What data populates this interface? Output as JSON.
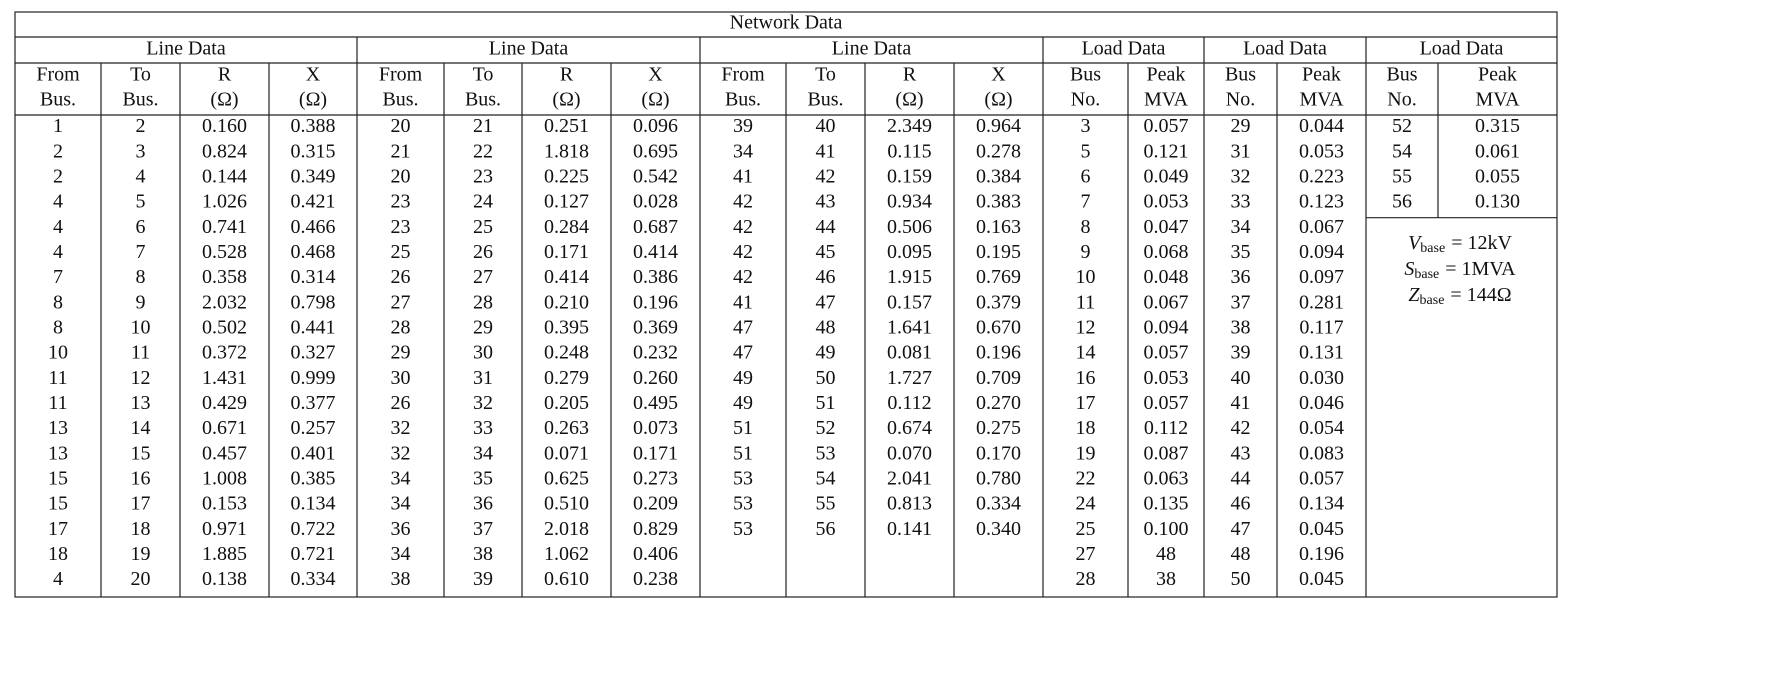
{
  "title": "Network Data",
  "groups": [
    {
      "title": "Line Data",
      "headers": [
        [
          "From",
          "Bus."
        ],
        [
          "To",
          "Bus."
        ],
        [
          "R",
          "(Ω)"
        ],
        [
          "X",
          "(Ω)"
        ]
      ],
      "rows": [
        [
          "1",
          "2",
          "0.160",
          "0.388"
        ],
        [
          "2",
          "3",
          "0.824",
          "0.315"
        ],
        [
          "2",
          "4",
          "0.144",
          "0.349"
        ],
        [
          "4",
          "5",
          "1.026",
          "0.421"
        ],
        [
          "4",
          "6",
          "0.741",
          "0.466"
        ],
        [
          "4",
          "7",
          "0.528",
          "0.468"
        ],
        [
          "7",
          "8",
          "0.358",
          "0.314"
        ],
        [
          "8",
          "9",
          "2.032",
          "0.798"
        ],
        [
          "8",
          "10",
          "0.502",
          "0.441"
        ],
        [
          "10",
          "11",
          "0.372",
          "0.327"
        ],
        [
          "11",
          "12",
          "1.431",
          "0.999"
        ],
        [
          "11",
          "13",
          "0.429",
          "0.377"
        ],
        [
          "13",
          "14",
          "0.671",
          "0.257"
        ],
        [
          "13",
          "15",
          "0.457",
          "0.401"
        ],
        [
          "15",
          "16",
          "1.008",
          "0.385"
        ],
        [
          "15",
          "17",
          "0.153",
          "0.134"
        ],
        [
          "17",
          "18",
          "0.971",
          "0.722"
        ],
        [
          "18",
          "19",
          "1.885",
          "0.721"
        ],
        [
          "4",
          "20",
          "0.138",
          "0.334"
        ]
      ]
    },
    {
      "title": "Line Data",
      "headers": [
        [
          "From",
          "Bus."
        ],
        [
          "To",
          "Bus."
        ],
        [
          "R",
          "(Ω)"
        ],
        [
          "X",
          "(Ω)"
        ]
      ],
      "rows": [
        [
          "20",
          "21",
          "0.251",
          "0.096"
        ],
        [
          "21",
          "22",
          "1.818",
          "0.695"
        ],
        [
          "20",
          "23",
          "0.225",
          "0.542"
        ],
        [
          "23",
          "24",
          "0.127",
          "0.028"
        ],
        [
          "23",
          "25",
          "0.284",
          "0.687"
        ],
        [
          "25",
          "26",
          "0.171",
          "0.414"
        ],
        [
          "26",
          "27",
          "0.414",
          "0.386"
        ],
        [
          "27",
          "28",
          "0.210",
          "0.196"
        ],
        [
          "28",
          "29",
          "0.395",
          "0.369"
        ],
        [
          "29",
          "30",
          "0.248",
          "0.232"
        ],
        [
          "30",
          "31",
          "0.279",
          "0.260"
        ],
        [
          "26",
          "32",
          "0.205",
          "0.495"
        ],
        [
          "32",
          "33",
          "0.263",
          "0.073"
        ],
        [
          "32",
          "34",
          "0.071",
          "0.171"
        ],
        [
          "34",
          "35",
          "0.625",
          "0.273"
        ],
        [
          "34",
          "36",
          "0.510",
          "0.209"
        ],
        [
          "36",
          "37",
          "2.018",
          "0.829"
        ],
        [
          "34",
          "38",
          "1.062",
          "0.406"
        ],
        [
          "38",
          "39",
          "0.610",
          "0.238"
        ]
      ]
    },
    {
      "title": "Line Data",
      "headers": [
        [
          "From",
          "Bus."
        ],
        [
          "To",
          "Bus."
        ],
        [
          "R",
          "(Ω)"
        ],
        [
          "X",
          "(Ω)"
        ]
      ],
      "rows": [
        [
          "39",
          "40",
          "2.349",
          "0.964"
        ],
        [
          "34",
          "41",
          "0.115",
          "0.278"
        ],
        [
          "41",
          "42",
          "0.159",
          "0.384"
        ],
        [
          "42",
          "43",
          "0.934",
          "0.383"
        ],
        [
          "42",
          "44",
          "0.506",
          "0.163"
        ],
        [
          "42",
          "45",
          "0.095",
          "0.195"
        ],
        [
          "42",
          "46",
          "1.915",
          "0.769"
        ],
        [
          "41",
          "47",
          "0.157",
          "0.379"
        ],
        [
          "47",
          "48",
          "1.641",
          "0.670"
        ],
        [
          "47",
          "49",
          "0.081",
          "0.196"
        ],
        [
          "49",
          "50",
          "1.727",
          "0.709"
        ],
        [
          "49",
          "51",
          "0.112",
          "0.270"
        ],
        [
          "51",
          "52",
          "0.674",
          "0.275"
        ],
        [
          "51",
          "53",
          "0.070",
          "0.170"
        ],
        [
          "53",
          "54",
          "2.041",
          "0.780"
        ],
        [
          "53",
          "55",
          "0.813",
          "0.334"
        ],
        [
          "53",
          "56",
          "0.141",
          "0.340"
        ]
      ]
    },
    {
      "title": "Load Data",
      "headers": [
        [
          "Bus",
          "No."
        ],
        [
          "Peak",
          "MVA"
        ]
      ],
      "rows": [
        [
          "3",
          "0.057"
        ],
        [
          "5",
          "0.121"
        ],
        [
          "6",
          "0.049"
        ],
        [
          "7",
          "0.053"
        ],
        [
          "8",
          "0.047"
        ],
        [
          "9",
          "0.068"
        ],
        [
          "10",
          "0.048"
        ],
        [
          "11",
          "0.067"
        ],
        [
          "12",
          "0.094"
        ],
        [
          "14",
          "0.057"
        ],
        [
          "16",
          "0.053"
        ],
        [
          "17",
          "0.057"
        ],
        [
          "18",
          "0.112"
        ],
        [
          "19",
          "0.087"
        ],
        [
          "22",
          "0.063"
        ],
        [
          "24",
          "0.135"
        ],
        [
          "25",
          "0.100"
        ],
        [
          "27",
          "48"
        ],
        [
          "28",
          "38"
        ]
      ]
    },
    {
      "title": "Load Data",
      "headers": [
        [
          "Bus",
          "No."
        ],
        [
          "Peak",
          "MVA"
        ]
      ],
      "rows": [
        [
          "29",
          "0.044"
        ],
        [
          "31",
          "0.053"
        ],
        [
          "32",
          "0.223"
        ],
        [
          "33",
          "0.123"
        ],
        [
          "34",
          "0.067"
        ],
        [
          "35",
          "0.094"
        ],
        [
          "36",
          "0.097"
        ],
        [
          "37",
          "0.281"
        ],
        [
          "38",
          "0.117"
        ],
        [
          "39",
          "0.131"
        ],
        [
          "40",
          "0.030"
        ],
        [
          "41",
          "0.046"
        ],
        [
          "42",
          "0.054"
        ],
        [
          "43",
          "0.083"
        ],
        [
          "44",
          "0.057"
        ],
        [
          "46",
          "0.134"
        ],
        [
          "47",
          "0.045"
        ],
        [
          "48",
          "0.196"
        ],
        [
          "50",
          "0.045"
        ]
      ]
    },
    {
      "title": "Load Data",
      "headers": [
        [
          "Bus",
          "No."
        ],
        [
          "Peak",
          "MVA"
        ]
      ],
      "rows": [
        [
          "52",
          "0.315"
        ],
        [
          "54",
          "0.061"
        ],
        [
          "55",
          "0.055"
        ],
        [
          "56",
          "0.130"
        ]
      ]
    }
  ],
  "base_values": [
    {
      "symbol": "V",
      "subscript": "base",
      "rhs": "= 12kV"
    },
    {
      "symbol": "S",
      "subscript": "base",
      "rhs": "= 1MVA"
    },
    {
      "symbol": "Z",
      "subscript": "base",
      "rhs": "= 144Ω"
    }
  ]
}
